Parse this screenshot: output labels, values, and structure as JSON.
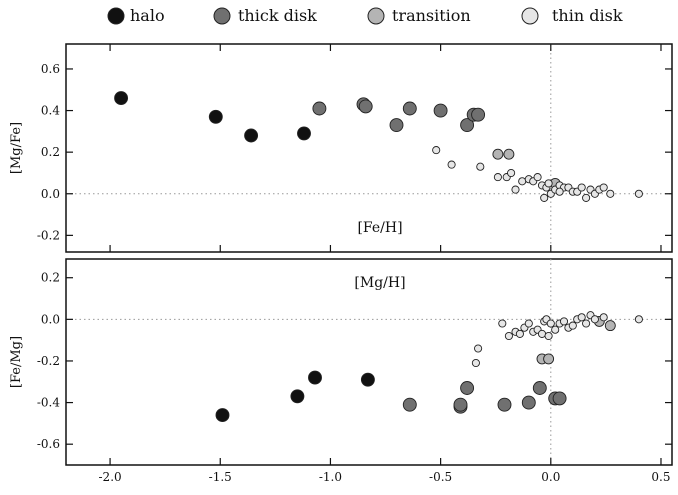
{
  "legend": [
    {
      "label": "halo",
      "color": "#111111"
    },
    {
      "label": "thick disk",
      "color": "#707070"
    },
    {
      "label": "transition",
      "color": "#b4b4b4"
    },
    {
      "label": "thin disk",
      "color": "#e6e6e6"
    }
  ],
  "chart_data": [
    {
      "type": "scatter",
      "xlabel": "[Fe/H]",
      "ylabel": "[Mg/Fe]",
      "xlim": [
        -2.2,
        0.55
      ],
      "ylim": [
        -0.28,
        0.72
      ],
      "yticks": [
        "0.6",
        "0.4",
        "0.2",
        "0.0",
        "-0.2"
      ],
      "reference_lines": {
        "x": 0.0,
        "y": 0.0
      },
      "series": [
        {
          "name": "halo",
          "points": [
            [
              -1.95,
              0.46
            ],
            [
              -1.52,
              0.37
            ],
            [
              -1.36,
              0.28
            ],
            [
              -1.12,
              0.29
            ]
          ]
        },
        {
          "name": "thick disk",
          "points": [
            [
              -1.05,
              0.41
            ],
            [
              -0.85,
              0.43
            ],
            [
              -0.84,
              0.42
            ],
            [
              -0.64,
              0.41
            ],
            [
              -0.5,
              0.4
            ],
            [
              -0.7,
              0.33
            ],
            [
              -0.38,
              0.33
            ],
            [
              -0.35,
              0.38
            ],
            [
              -0.33,
              0.38
            ]
          ]
        },
        {
          "name": "transition",
          "points": [
            [
              -0.24,
              0.19
            ],
            [
              -0.19,
              0.19
            ],
            [
              0.02,
              0.05
            ]
          ]
        },
        {
          "name": "thin disk",
          "points": [
            [
              -0.52,
              0.21
            ],
            [
              -0.45,
              0.14
            ],
            [
              -0.32,
              0.13
            ],
            [
              -0.24,
              0.08
            ],
            [
              -0.2,
              0.08
            ],
            [
              -0.18,
              0.1
            ],
            [
              -0.16,
              0.02
            ],
            [
              -0.13,
              0.06
            ],
            [
              -0.1,
              0.07
            ],
            [
              -0.08,
              0.06
            ],
            [
              -0.06,
              0.08
            ],
            [
              -0.04,
              0.04
            ],
            [
              -0.02,
              0.03
            ],
            [
              -0.01,
              0.05
            ],
            [
              0.0,
              0.0
            ],
            [
              0.02,
              0.02
            ],
            [
              0.04,
              0.04
            ],
            [
              0.06,
              0.03
            ],
            [
              0.08,
              0.03
            ],
            [
              0.1,
              0.01
            ],
            [
              0.12,
              0.01
            ],
            [
              0.14,
              0.03
            ],
            [
              0.16,
              -0.02
            ],
            [
              0.18,
              0.02
            ],
            [
              0.2,
              0.0
            ],
            [
              0.22,
              0.02
            ],
            [
              0.24,
              0.03
            ],
            [
              0.27,
              0.0
            ],
            [
              0.4,
              0.0
            ],
            [
              -0.03,
              -0.02
            ],
            [
              0.04,
              0.01
            ]
          ]
        }
      ]
    },
    {
      "type": "scatter",
      "xlabel": "[Mg/H]",
      "ylabel": "[Fe/Mg]",
      "xlim": [
        -2.2,
        0.55
      ],
      "ylim": [
        -0.7,
        0.29
      ],
      "xticks": [
        "-2.0",
        "-1.5",
        "-1.0",
        "-0.5",
        "0.0",
        "0.5"
      ],
      "yticks": [
        "0.2",
        "0.0",
        "-0.2",
        "-0.4",
        "-0.6"
      ],
      "reference_lines": {
        "x": 0.0,
        "y": 0.0
      },
      "series": [
        {
          "name": "halo",
          "points": [
            [
              -1.49,
              -0.46
            ],
            [
              -1.15,
              -0.37
            ],
            [
              -1.07,
              -0.28
            ],
            [
              -0.83,
              -0.29
            ]
          ]
        },
        {
          "name": "thick disk",
          "points": [
            [
              -0.64,
              -0.41
            ],
            [
              -0.41,
              -0.42
            ],
            [
              -0.41,
              -0.41
            ],
            [
              -0.38,
              -0.33
            ],
            [
              -0.21,
              -0.41
            ],
            [
              -0.1,
              -0.4
            ],
            [
              -0.05,
              -0.33
            ],
            [
              0.02,
              -0.38
            ],
            [
              0.04,
              -0.38
            ]
          ]
        },
        {
          "name": "transition",
          "points": [
            [
              -0.04,
              -0.19
            ],
            [
              -0.01,
              -0.19
            ],
            [
              0.22,
              -0.01
            ],
            [
              0.27,
              -0.03
            ]
          ]
        },
        {
          "name": "thin disk",
          "points": [
            [
              -0.33,
              -0.14
            ],
            [
              -0.34,
              -0.21
            ],
            [
              -0.22,
              -0.02
            ],
            [
              -0.19,
              -0.08
            ],
            [
              -0.16,
              -0.06
            ],
            [
              -0.14,
              -0.07
            ],
            [
              -0.12,
              -0.04
            ],
            [
              -0.1,
              -0.02
            ],
            [
              -0.08,
              -0.06
            ],
            [
              -0.06,
              -0.05
            ],
            [
              -0.04,
              -0.07
            ],
            [
              -0.03,
              -0.01
            ],
            [
              -0.02,
              0.0
            ],
            [
              0.0,
              -0.02
            ],
            [
              0.02,
              -0.05
            ],
            [
              0.04,
              -0.02
            ],
            [
              0.06,
              -0.01
            ],
            [
              0.08,
              -0.04
            ],
            [
              0.1,
              -0.03
            ],
            [
              0.12,
              0.0
            ],
            [
              0.14,
              0.01
            ],
            [
              0.16,
              -0.02
            ],
            [
              0.18,
              0.02
            ],
            [
              0.2,
              0.0
            ],
            [
              0.24,
              0.01
            ],
            [
              0.4,
              0.0
            ],
            [
              -0.01,
              -0.08
            ]
          ]
        }
      ]
    }
  ]
}
